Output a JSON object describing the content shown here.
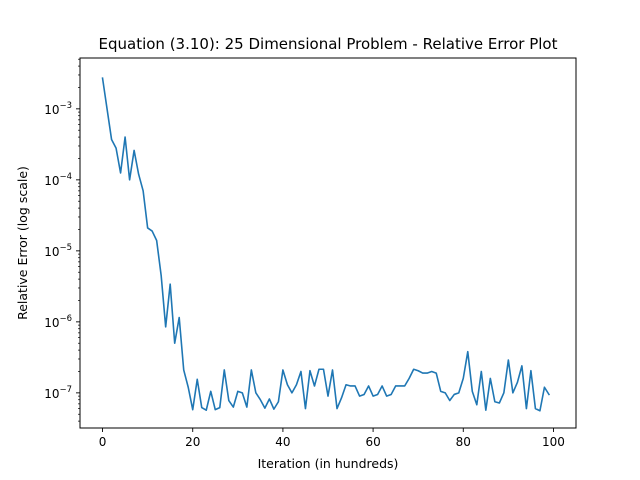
{
  "chart_data": {
    "type": "line",
    "title": "Equation (3.10): 25 Dimensional Problem - Relative Error Plot",
    "xlabel": "Iteration (in hundreds)",
    "ylabel": "Relative Error (log scale)",
    "yscale": "log",
    "xlim": [
      -5,
      105
    ],
    "ylim": [
      3.2e-08,
      0.0052
    ],
    "grid": false,
    "line_color": "#1f77b4",
    "xticks": [
      {
        "value": 0,
        "label": "0"
      },
      {
        "value": 20,
        "label": "20"
      },
      {
        "value": 40,
        "label": "40"
      },
      {
        "value": 60,
        "label": "60"
      },
      {
        "value": 80,
        "label": "80"
      },
      {
        "value": 100,
        "label": "100"
      }
    ],
    "yticks": [
      {
        "value": 1e-07,
        "base": "10",
        "exp": "−7"
      },
      {
        "value": 1e-06,
        "base": "10",
        "exp": "−6"
      },
      {
        "value": 1e-05,
        "base": "10",
        "exp": "−5"
      },
      {
        "value": 0.0001,
        "base": "10",
        "exp": "−4"
      },
      {
        "value": 0.001,
        "base": "10",
        "exp": "−3"
      }
    ],
    "series": [
      {
        "x": [
          0,
          1,
          2,
          3,
          4,
          5,
          6,
          7,
          8,
          9,
          10,
          11,
          12,
          13,
          14,
          15,
          16,
          17,
          18,
          19,
          20,
          21,
          22,
          23,
          24,
          25,
          26,
          27,
          28,
          29,
          30,
          31,
          32,
          33,
          34,
          35,
          36,
          37,
          38,
          39,
          40,
          41,
          42,
          43,
          44,
          45,
          46,
          47,
          48,
          49,
          50,
          51,
          52,
          53,
          54,
          55,
          56,
          57,
          58,
          59,
          60,
          61,
          62,
          63,
          64,
          65,
          66,
          67,
          68,
          69,
          70,
          71,
          72,
          73,
          74,
          75,
          76,
          77,
          78,
          79,
          80,
          81,
          82,
          83,
          84,
          85,
          86,
          87,
          88,
          89,
          90,
          91,
          92,
          93,
          94,
          95,
          96,
          97,
          98,
          99
        ],
        "values": [
          0.0027,
          0.001,
          0.00037,
          0.00028,
          0.000125,
          0.0004,
          0.0001,
          0.00026,
          0.00012,
          7e-05,
          2.1e-05,
          1.9e-05,
          1.4e-05,
          4.5e-06,
          8.5e-07,
          3.4e-06,
          5e-07,
          1.15e-06,
          2.1e-07,
          1.2e-07,
          5.8e-08,
          1.55e-07,
          6.2e-08,
          5.7e-08,
          1.05e-07,
          5.8e-08,
          6.2e-08,
          2.1e-07,
          7.8e-08,
          6.3e-08,
          1.05e-07,
          1e-07,
          6.3e-08,
          2.1e-07,
          1e-07,
          8e-08,
          6.1e-08,
          8.2e-08,
          5.9e-08,
          7.5e-08,
          2.1e-07,
          1.3e-07,
          1e-07,
          1.3e-07,
          2e-07,
          6e-08,
          2.05e-07,
          1.25e-07,
          2.15e-07,
          2.15e-07,
          9e-08,
          2.1e-07,
          6e-08,
          8.5e-08,
          1.3e-07,
          1.25e-07,
          1.25e-07,
          9e-08,
          9.5e-08,
          1.25e-07,
          9e-08,
          9.5e-08,
          1.25e-07,
          9e-08,
          9.5e-08,
          1.25e-07,
          1.25e-07,
          1.25e-07,
          1.6e-07,
          2.15e-07,
          2.05e-07,
          1.9e-07,
          1.9e-07,
          2e-07,
          1.9e-07,
          1.05e-07,
          1e-07,
          7.8e-08,
          9.5e-08,
          1e-07,
          1.6e-07,
          3.8e-07,
          1.05e-07,
          6.8e-08,
          2e-07,
          5.7e-08,
          1.6e-07,
          7.5e-08,
          7.2e-08,
          1e-07,
          2.9e-07,
          1e-07,
          1.4e-07,
          2.4e-07,
          6e-08,
          2.05e-07,
          6e-08,
          5.6e-08,
          1.2e-07,
          9.5e-08
        ]
      }
    ]
  }
}
